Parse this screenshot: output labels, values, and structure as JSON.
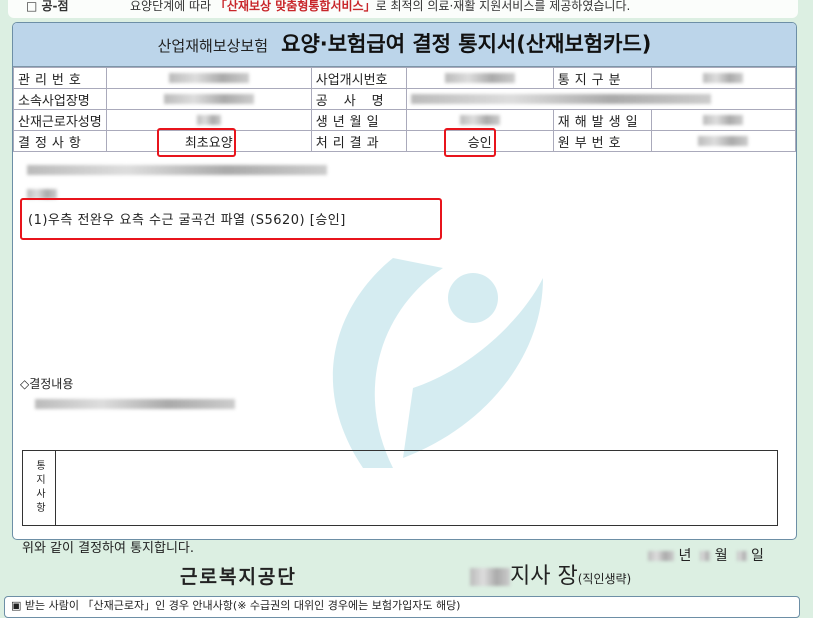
{
  "top_strip": {
    "lead": "□ 공-점",
    "message_prefix": "요양단계에 따라 ",
    "message_highlight": "「산재보상 맞춤형통합서비스」",
    "message_suffix": "로 최적의 의료·재활 지원서비스를 제공하였습니다."
  },
  "header": {
    "subtitle": "산업재해보상보험",
    "title": "요양·보험급여 결정 통지서(산재보험카드)"
  },
  "info_table": {
    "labels": [
      "관리번호",
      "사업개시번호",
      "통지구분",
      "소속사업장명",
      "공사명",
      "산재근로자성명",
      "생년월일",
      "재해발생일",
      "결정사항",
      "처리결과",
      "원부번호"
    ],
    "decision": "최초요양",
    "result": "승인"
  },
  "diagnosis": "(1)우측 전완우 요측 수근 굴곡건 파열 (S5620) [승인]",
  "decision_content_label": "◇결정내용",
  "notice_label": "통지사항",
  "footer": {
    "statement": "위와 같이 결정하여 통지합니다.",
    "organization": "근로복지공단",
    "branch_head": "지사 장",
    "seal_note": "(직인생략)",
    "date_units": [
      "년",
      "월",
      "일"
    ]
  },
  "bottom_note": "▣ 받는 사람이 「산재근로자」인 경우 안내사항(※ 수급권의 대위인 경우에는 보험가입자도 해당)",
  "colors": {
    "background": "#dcefe2",
    "header": "#bcd5ea",
    "highlight": "#e8141c"
  }
}
